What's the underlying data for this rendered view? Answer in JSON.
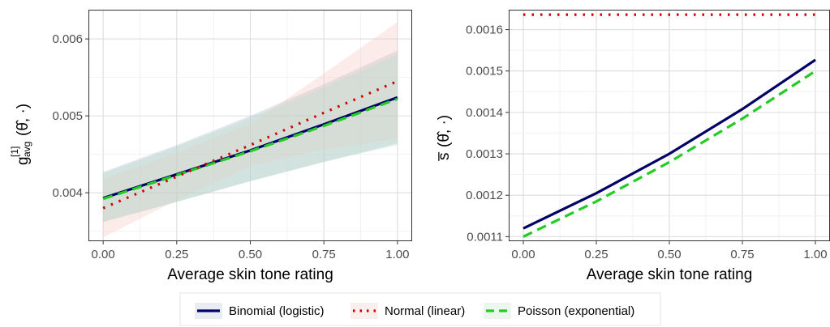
{
  "chart_data": [
    {
      "type": "line",
      "xlabel": "Average skin tone rating",
      "ylabel_main": "g",
      "ylabel_superscript": "[1]",
      "ylabel_subscript": "avg",
      "ylabel_args": "(θ̂, ·)",
      "xlim": [
        -0.05,
        1.05
      ],
      "ylim": [
        0.00337,
        0.00638
      ],
      "xticks": [
        0,
        0.25,
        0.5,
        0.75,
        1
      ],
      "xtick_labels": [
        "0.00",
        "0.25",
        "0.50",
        "0.75",
        "1.00"
      ],
      "yticks": [
        0.004,
        0.005,
        0.006
      ],
      "ytick_labels": [
        "0.004",
        "0.005",
        "0.006"
      ],
      "grid": true,
      "x": [
        0,
        0.25,
        0.5,
        0.75,
        1
      ],
      "series": [
        {
          "name": "Binomial (logistic)",
          "values": [
            0.00393,
            0.00424,
            0.00455,
            0.00489,
            0.00524
          ],
          "ribbon_low": [
            0.00362,
            0.00388,
            0.00415,
            0.0044,
            0.00464
          ],
          "ribbon_high": [
            0.00427,
            0.00462,
            0.005,
            0.00541,
            0.00585
          ]
        },
        {
          "name": "Normal (linear)",
          "values": [
            0.0038,
            0.00421,
            0.00462,
            0.00504,
            0.00545
          ],
          "ribbon_low": [
            0.00342,
            0.0039,
            0.00435,
            0.00456,
            0.0047
          ],
          "ribbon_high": [
            0.00418,
            0.00452,
            0.0049,
            0.00555,
            0.00622
          ]
        },
        {
          "name": "Poisson (exponential)",
          "values": [
            0.00392,
            0.00423,
            0.00454,
            0.00487,
            0.00522
          ],
          "ribbon_low": [
            0.00362,
            0.00388,
            0.00415,
            0.0044,
            0.00462
          ],
          "ribbon_high": [
            0.00425,
            0.0046,
            0.00497,
            0.00537,
            0.0058
          ]
        }
      ]
    },
    {
      "type": "line",
      "xlabel": "Average skin tone rating",
      "ylabel_main": "s̅",
      "ylabel_args": "(θ̂, ·)",
      "xlim": [
        -0.05,
        1.05
      ],
      "ylim": [
        0.001089,
        0.001648
      ],
      "xticks": [
        0,
        0.25,
        0.5,
        0.75,
        1
      ],
      "xtick_labels": [
        "0.00",
        "0.25",
        "0.50",
        "0.75",
        "1.00"
      ],
      "yticks": [
        0.0011,
        0.0012,
        0.0013,
        0.0014,
        0.0015,
        0.0016
      ],
      "ytick_labels": [
        "0.0011",
        "0.0012",
        "0.0013",
        "0.0014",
        "0.0015",
        "0.0016"
      ],
      "grid": true,
      "x": [
        0,
        0.25,
        0.5,
        0.75,
        1
      ],
      "series": [
        {
          "name": "Binomial (logistic)",
          "values": [
            0.00112,
            0.001205,
            0.0013,
            0.001408,
            0.001527
          ]
        },
        {
          "name": "Normal (linear)",
          "values": [
            0.001636,
            0.001636,
            0.001636,
            0.001636,
            0.001636
          ]
        },
        {
          "name": "Poisson (exponential)",
          "values": [
            0.0011,
            0.001185,
            0.00128,
            0.001385,
            0.0015
          ]
        }
      ]
    }
  ],
  "legend": {
    "placement": "bottom",
    "items": [
      {
        "label": "Binomial (logistic)",
        "color": "#000066",
        "dash": "solid"
      },
      {
        "label": "Normal (linear)",
        "color": "#cc0000",
        "dash": "dotted"
      },
      {
        "label": "Poisson (exponential)",
        "color": "#22cc22",
        "dash": "dashed"
      }
    ]
  },
  "colors": {
    "binomial": "#000066",
    "normal": "#cc0000",
    "poisson": "#22cc22",
    "ribbon_binomial": "#a8b4c8",
    "ribbon_normal": "#f4c8c4",
    "ribbon_poisson": "#b8e0c8"
  }
}
